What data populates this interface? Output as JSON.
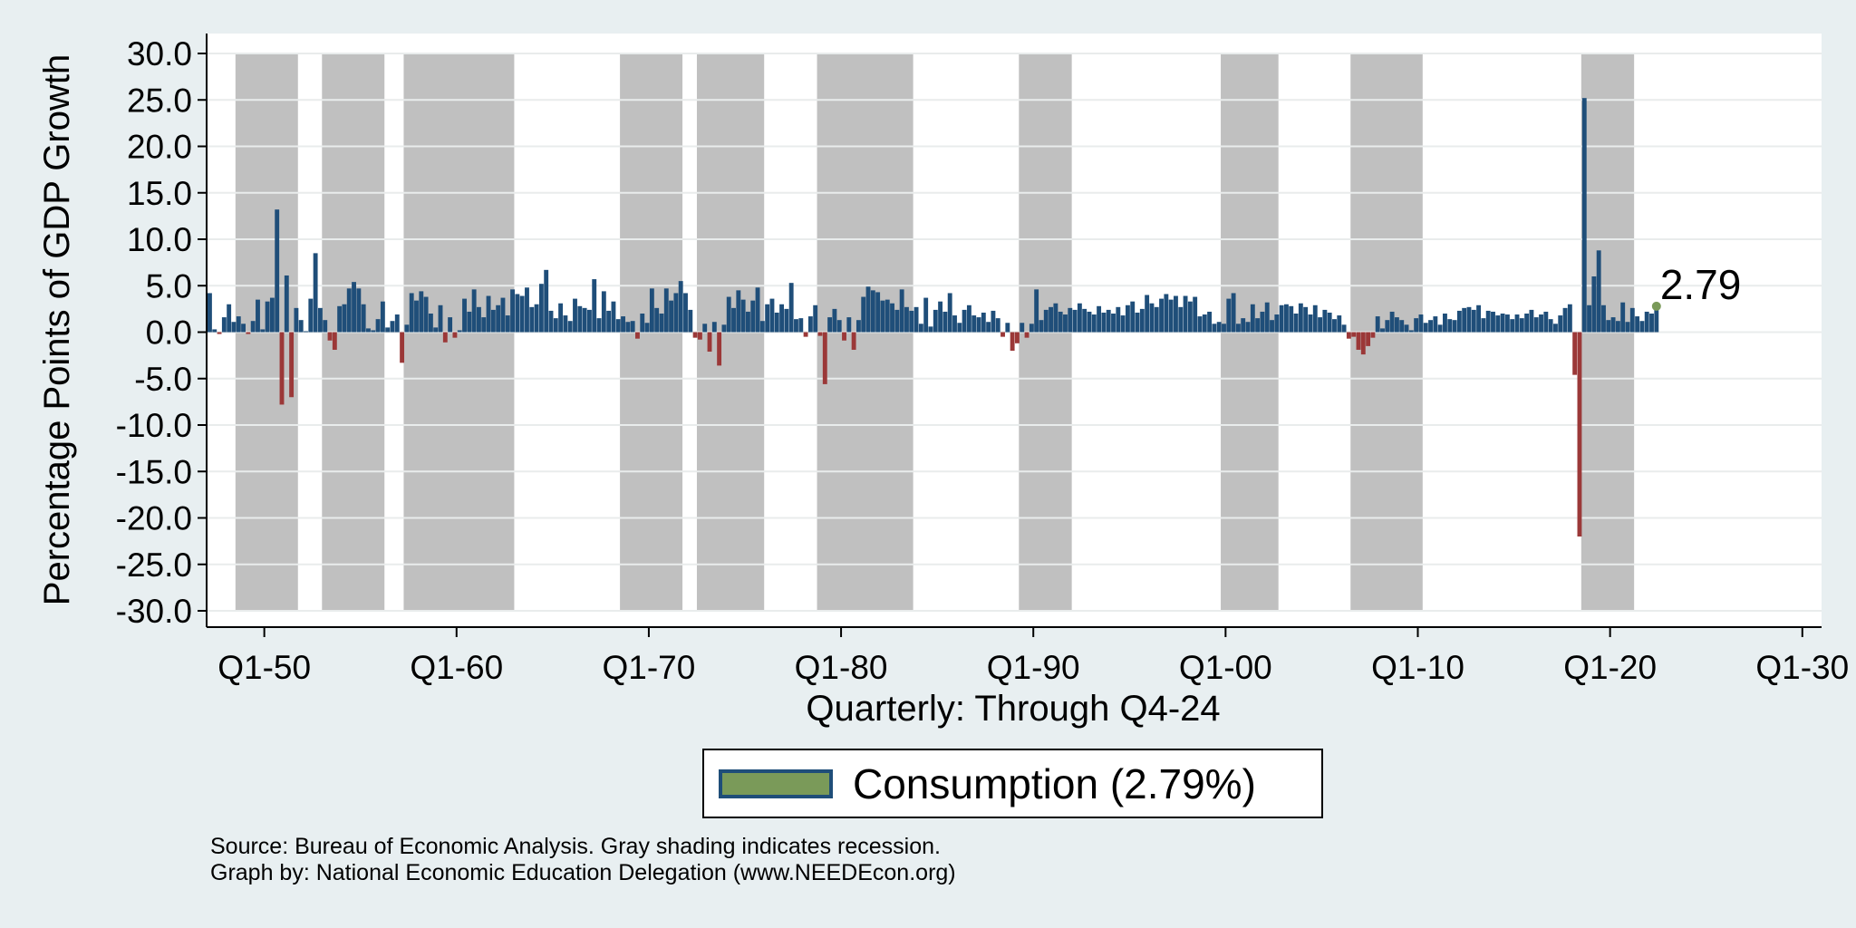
{
  "colors": {
    "page_bg": "#e8eff1",
    "plot_bg": "#ffffff",
    "positive": "#1f4e79",
    "negative": "#9b3838",
    "recession": "#c0c0c0",
    "grid": "#e9ecec",
    "end_marker": "#7a9a59"
  },
  "chart_data": {
    "type": "bar",
    "ylabel": "Percentage Points of GDP Growth",
    "xlabel": "Quarterly: Through Q4-24",
    "ylim": [
      -30,
      30
    ],
    "yticks": [
      30,
      25,
      20,
      15,
      10,
      5,
      0,
      -5,
      -10,
      -15,
      -20,
      -25,
      -30
    ],
    "ytick_labels": [
      "30.0",
      "25.0",
      "20.0",
      "15.0",
      "10.0",
      "5.0",
      "0.0",
      "-5.0",
      "-10.0",
      "-15.0",
      "-20.0",
      "-25.0",
      "-30.0"
    ],
    "xlim": [
      1947.0,
      2031.0
    ],
    "xticks": [
      1950,
      1960,
      1970,
      1980,
      1990,
      2000,
      2010,
      2020,
      2030
    ],
    "xtick_labels": [
      "Q1-50",
      "Q1-60",
      "Q1-70",
      "Q1-80",
      "Q1-90",
      "Q1-00",
      "Q1-10",
      "Q1-20",
      "Q1-30"
    ],
    "x_start": 1947.0,
    "quarter_step": 0.25,
    "recessions": [
      [
        1948.75,
        1950.0
      ],
      [
        1953.5,
        1954.5
      ],
      [
        1957.75,
        1958.5
      ],
      [
        1960.25,
        1961.25
      ],
      [
        1969.75,
        1971.0
      ],
      [
        1973.75,
        1975.25
      ],
      [
        1980.0,
        1980.75
      ],
      [
        1981.5,
        1983.0
      ],
      [
        1990.5,
        1991.25
      ],
      [
        2001.0,
        2002.0
      ],
      [
        2007.75,
        2009.5
      ],
      [
        2020.0,
        2020.5
      ]
    ],
    "recession_bands": [
      [
        1948.5,
        1951.75
      ],
      [
        1953.0,
        1956.25
      ],
      [
        1957.25,
        1963.0
      ],
      [
        1968.5,
        1971.75
      ],
      [
        1972.5,
        1976.0
      ],
      [
        1978.75,
        1983.75
      ],
      [
        1989.25,
        1992.0
      ],
      [
        1999.75,
        2002.75
      ],
      [
        2006.5,
        2010.25
      ],
      [
        2018.5,
        2021.25
      ]
    ],
    "series": [
      {
        "name": "Consumption",
        "values": [
          4.2,
          0.3,
          -0.2,
          1.6,
          3.0,
          1.1,
          1.7,
          0.9,
          -0.2,
          1.2,
          3.5,
          0.3,
          3.3,
          3.7,
          13.2,
          -7.8,
          6.1,
          -7.0,
          2.6,
          1.3,
          0.1,
          3.6,
          8.5,
          2.6,
          1.3,
          -0.9,
          -1.9,
          2.8,
          3.0,
          4.7,
          5.4,
          4.7,
          3.0,
          0.4,
          0.2,
          1.4,
          3.3,
          0.5,
          1.2,
          1.9,
          -3.3,
          0.8,
          4.2,
          3.4,
          4.4,
          3.8,
          2.0,
          0.5,
          2.9,
          -1.1,
          1.6,
          -0.6,
          0.2,
          3.6,
          2.2,
          4.6,
          2.7,
          1.6,
          3.9,
          2.4,
          2.9,
          3.7,
          1.8,
          4.6,
          4.1,
          3.9,
          4.8,
          2.7,
          3.0,
          5.2,
          6.7,
          2.3,
          1.5,
          3.1,
          1.8,
          1.2,
          3.6,
          2.8,
          2.6,
          2.4,
          5.7,
          1.5,
          4.4,
          2.3,
          3.3,
          1.4,
          1.7,
          1.1,
          1.2,
          -0.7,
          2.0,
          1.0,
          4.7,
          2.6,
          2.0,
          4.7,
          3.4,
          4.2,
          5.5,
          4.2,
          2.4,
          -0.6,
          -0.8,
          0.9,
          -2.1,
          1.1,
          -3.6,
          0.8,
          3.8,
          2.6,
          4.5,
          3.5,
          2.2,
          3.4,
          4.8,
          1.2,
          3.0,
          3.6,
          2.1,
          3.0,
          2.5,
          5.3,
          1.4,
          1.5,
          -0.5,
          1.7,
          2.9,
          -0.4,
          -5.6,
          1.6,
          2.5,
          1.3,
          -0.9,
          1.6,
          -1.9,
          1.3,
          3.8,
          4.9,
          4.5,
          4.3,
          3.4,
          3.5,
          3.1,
          2.4,
          4.6,
          2.7,
          2.3,
          2.7,
          0.9,
          3.7,
          0.6,
          2.4,
          3.3,
          2.2,
          4.2,
          1.8,
          1.0,
          2.4,
          2.9,
          1.8,
          1.6,
          2.1,
          1.1,
          2.3,
          1.5,
          -0.5,
          1.0,
          -2.0,
          -1.2,
          1.0,
          -0.6,
          0.9,
          4.6,
          1.3,
          2.4,
          2.7,
          3.1,
          2.2,
          1.9,
          2.6,
          2.4,
          3.1,
          2.5,
          2.2,
          1.9,
          2.8,
          2.1,
          2.4,
          2.0,
          2.7,
          1.8,
          2.9,
          3.3,
          2.1,
          2.5,
          4.0,
          3.1,
          2.7,
          3.6,
          4.1,
          3.5,
          3.9,
          2.7,
          3.9,
          3.3,
          3.8,
          1.7,
          1.9,
          2.2,
          0.9,
          1.1,
          0.9,
          3.6,
          4.2,
          0.9,
          1.5,
          1.1,
          3.0,
          1.5,
          2.2,
          3.2,
          1.3,
          1.9,
          2.9,
          3.0,
          2.8,
          2.0,
          3.1,
          2.7,
          1.9,
          2.9,
          1.6,
          2.4,
          2.1,
          1.4,
          1.8,
          0.8,
          -0.7,
          -0.5,
          -1.9,
          -2.4,
          -1.5,
          -0.6,
          1.7,
          0.4,
          1.3,
          2.2,
          1.6,
          1.3,
          0.8,
          0.2,
          1.5,
          1.9,
          1.0,
          1.3,
          1.7,
          0.8,
          2.0,
          1.4,
          1.3,
          2.3,
          2.6,
          2.7,
          2.4,
          2.9,
          1.5,
          2.3,
          2.2,
          1.8,
          2.0,
          1.9,
          1.4,
          1.9,
          1.5,
          2.0,
          2.4,
          1.6,
          1.9,
          2.2,
          1.4,
          0.9,
          1.8,
          2.6,
          3.0,
          -4.6,
          -22.0,
          25.2,
          2.9,
          6.0,
          8.8,
          2.9,
          1.3,
          1.6,
          1.2,
          3.2,
          1.1,
          2.6,
          1.7,
          1.2,
          2.2,
          2.0,
          2.79
        ]
      }
    ],
    "end_value_label": "2.79",
    "legend": {
      "label": "Consumption (2.79%)",
      "position": "bottom"
    }
  },
  "footnotes": {
    "source": "Source: Bureau of Economic Analysis. Gray shading indicates recession.",
    "credit": "Graph by: National Economic Education Delegation (www.NEEDEcon.org)"
  }
}
